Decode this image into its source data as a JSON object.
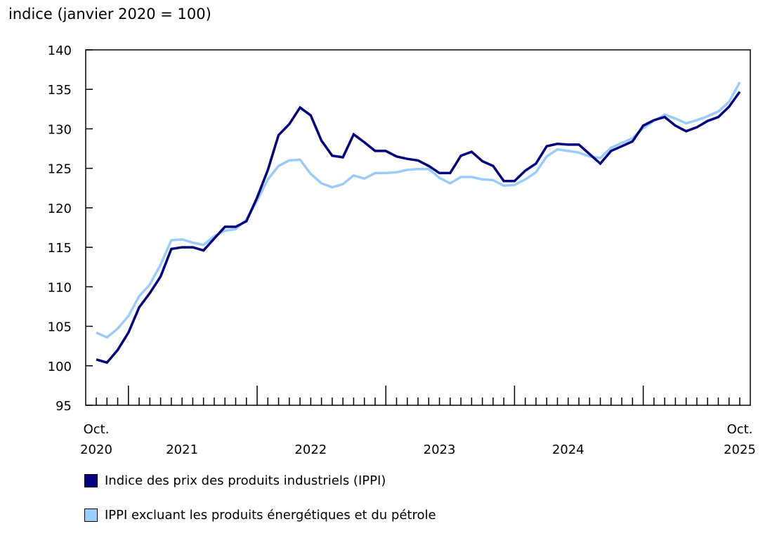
{
  "chart_data": {
    "type": "line",
    "title": "",
    "ylabel": "indice (janvier 2020 = 100)",
    "xlabel": "",
    "ylim": [
      95,
      140
    ],
    "yticks": [
      95,
      100,
      105,
      110,
      115,
      120,
      125,
      130,
      135,
      140
    ],
    "x_start": "2020-10",
    "x_end": "2025-10",
    "x_tick_labels": [
      {
        "month": "2020-10",
        "line1": "Oct.",
        "line2": "2020"
      },
      {
        "month": "2021-06",
        "line1": "",
        "line2": "2021"
      },
      {
        "month": "2022-06",
        "line1": "",
        "line2": "2022"
      },
      {
        "month": "2023-06",
        "line1": "",
        "line2": "2023"
      },
      {
        "month": "2024-06",
        "line1": "",
        "line2": "2024"
      },
      {
        "month": "2025-10",
        "line1": "Oct.",
        "line2": "2025"
      }
    ],
    "grid": false,
    "legend_position": "bottom",
    "series": [
      {
        "name": "Indice des prix des produits industriels (IPPI)",
        "color": "#000080",
        "values": [
          100.8,
          100.4,
          102.0,
          104.2,
          107.4,
          109.2,
          111.3,
          114.8,
          115.0,
          115.0,
          114.6,
          116.1,
          117.6,
          117.6,
          118.3,
          121.3,
          124.8,
          129.2,
          130.6,
          132.7,
          131.7,
          128.5,
          126.6,
          126.4,
          129.3,
          128.3,
          127.2,
          127.2,
          126.5,
          126.2,
          126.0,
          125.3,
          124.4,
          124.4,
          126.6,
          127.1,
          125.9,
          125.3,
          123.4,
          123.4,
          124.7,
          125.6,
          127.8,
          128.1,
          128.0,
          128.0,
          126.8,
          125.6,
          127.2,
          127.8,
          128.4,
          130.4,
          131.1,
          131.5,
          130.4,
          129.7,
          130.2,
          131.0,
          131.5,
          132.8,
          134.7
        ]
      },
      {
        "name": "IPPI excluant les produits énergétiques et du pétrole",
        "color": "#99ccff",
        "values": [
          104.2,
          103.6,
          104.7,
          106.3,
          108.8,
          110.3,
          112.8,
          115.9,
          116.0,
          115.6,
          115.3,
          116.4,
          117.1,
          117.3,
          118.5,
          120.9,
          123.6,
          125.3,
          126.0,
          126.1,
          124.3,
          123.1,
          122.6,
          123.0,
          124.1,
          123.7,
          124.4,
          124.4,
          124.5,
          124.8,
          124.9,
          124.9,
          123.8,
          123.1,
          123.9,
          123.9,
          123.6,
          123.5,
          122.8,
          122.9,
          123.6,
          124.5,
          126.5,
          127.4,
          127.2,
          127.0,
          126.5,
          126.3,
          127.6,
          128.2,
          128.8,
          130.1,
          131.0,
          131.8,
          131.3,
          130.7,
          131.1,
          131.6,
          132.2,
          133.4,
          135.9
        ]
      }
    ]
  }
}
